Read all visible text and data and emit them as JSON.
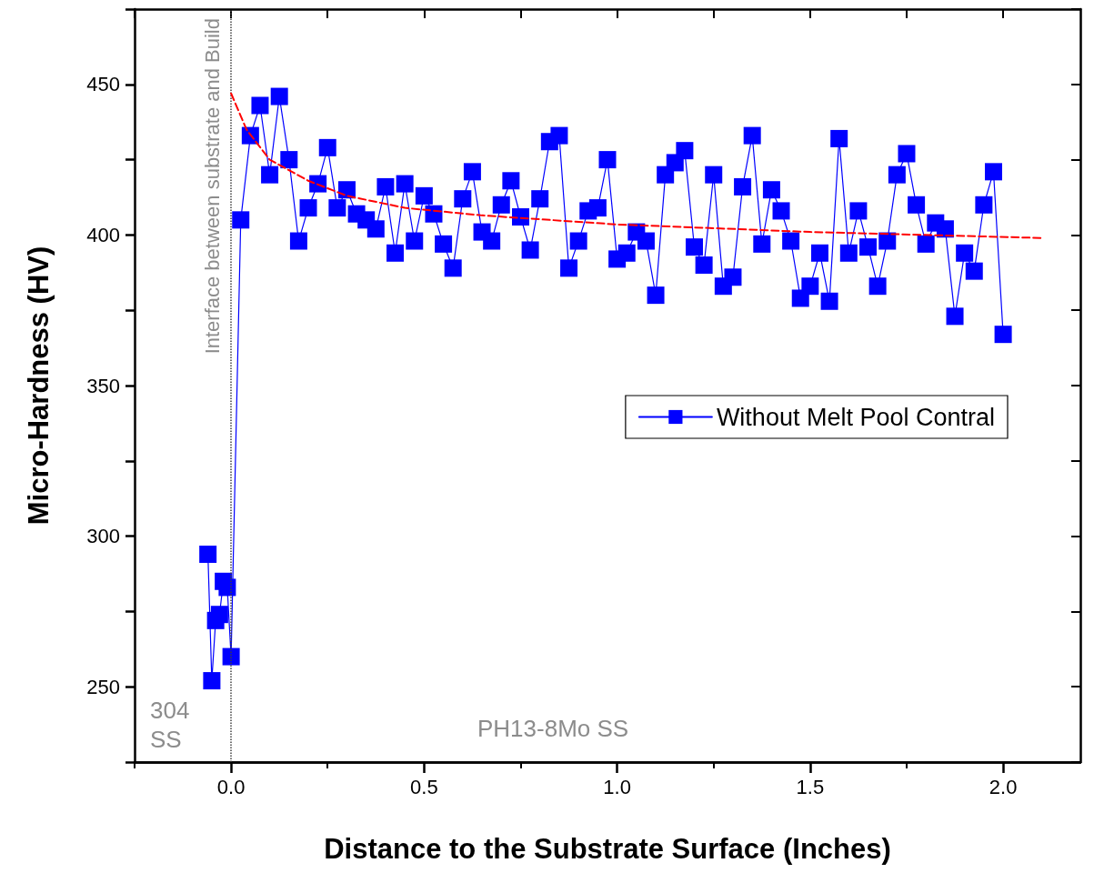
{
  "chart_data": {
    "type": "line",
    "xlabel": "Distance to the Substrate Surface (Inches)",
    "ylabel": "Micro-Hardness (HV)",
    "xlim": [
      -0.25,
      2.2
    ],
    "xticks": [
      {
        "value": -0.25,
        "label": null
      },
      {
        "value": 0,
        "label": "0.0"
      },
      {
        "value": 0.25,
        "label": null
      },
      0.5,
      {
        "value": 0.75,
        "label": null
      },
      {
        "value": 1,
        "label": "1.0"
      },
      {
        "value": 1.25,
        "label": null
      },
      1.5,
      {
        "value": 1.75,
        "label": null
      },
      {
        "value": 2,
        "label": "2.0"
      }
    ],
    "ylim": [
      225,
      475
    ],
    "yticks": [
      {
        "value": 225,
        "label": null
      },
      250,
      {
        "value": 275,
        "label": null
      },
      300,
      {
        "value": 325,
        "label": null
      },
      350,
      {
        "value": 375,
        "label": null
      },
      400,
      {
        "value": 425,
        "label": null
      },
      450,
      {
        "value": 475,
        "label": null
      }
    ],
    "grid": false,
    "legend": "right",
    "marker": "square",
    "line_style": "solid",
    "series": [
      {
        "name": "Without Melt Pool Contral",
        "color": "#0000ff",
        "x": [
          -0.06,
          -0.05,
          -0.04,
          -0.03,
          -0.02,
          -0.01,
          0.0,
          0.025,
          0.05,
          0.075,
          0.1,
          0.125,
          0.15,
          0.175,
          0.2,
          0.225,
          0.25,
          0.275,
          0.3,
          0.325,
          0.35,
          0.375,
          0.4,
          0.425,
          0.45,
          0.475,
          0.5,
          0.525,
          0.55,
          0.575,
          0.6,
          0.625,
          0.65,
          0.675,
          0.7,
          0.725,
          0.75,
          0.775,
          0.8,
          0.825,
          0.85,
          0.875,
          0.9,
          0.925,
          0.95,
          0.975,
          1.0,
          1.025,
          1.05,
          1.075,
          1.1,
          1.125,
          1.15,
          1.175,
          1.2,
          1.225,
          1.25,
          1.275,
          1.3,
          1.325,
          1.35,
          1.375,
          1.4,
          1.425,
          1.45,
          1.475,
          1.5,
          1.525,
          1.55,
          1.575,
          1.6,
          1.625,
          1.65,
          1.675,
          1.7,
          1.725,
          1.75,
          1.775,
          1.8,
          1.825,
          1.85,
          1.875,
          1.9,
          1.925,
          1.95,
          1.975,
          2.0
        ],
        "values": [
          294,
          252,
          272,
          274,
          285,
          283,
          260,
          405,
          433,
          443,
          420,
          446,
          425,
          398,
          409,
          417,
          429,
          409,
          415,
          407,
          405,
          402,
          416,
          394,
          417,
          398,
          413,
          407,
          397,
          389,
          412,
          421,
          401,
          398,
          410,
          418,
          406,
          395,
          412,
          431,
          433,
          389,
          398,
          408,
          409,
          425,
          392,
          394,
          401,
          398,
          380,
          420,
          424,
          428,
          396,
          390,
          420,
          383,
          386,
          416,
          433,
          397,
          415,
          408,
          398,
          379,
          383,
          394,
          378,
          432,
          394,
          408,
          396,
          383,
          398,
          420,
          427,
          410,
          397,
          404,
          402,
          373,
          394,
          388,
          410,
          421,
          367
        ]
      },
      {
        "type": "line",
        "color": "#ff0000",
        "line_style": "dashed",
        "marker": "none",
        "x": [
          0.0,
          0.04,
          0.1,
          0.2,
          0.3,
          0.45,
          0.65,
          1.0,
          1.5,
          2.1
        ],
        "values": [
          447,
          435,
          425,
          418,
          413,
          409,
          406.5,
          403.5,
          401,
          399
        ]
      }
    ],
    "ref_lines": [
      {
        "axis": "x",
        "value": 0.0,
        "label": "Interface between substrate and Build",
        "color": "#404040",
        "line_style": "dotted"
      }
    ],
    "annotations": [
      "304\nSS",
      "PH13-8Mo SS"
    ]
  }
}
